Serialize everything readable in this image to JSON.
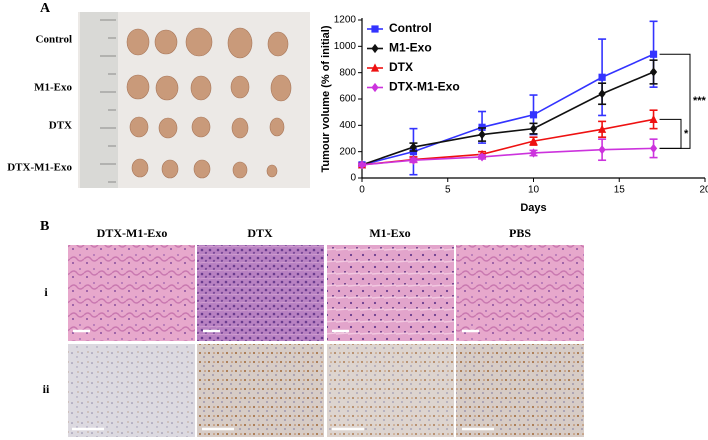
{
  "chart_data": {
    "type": "line",
    "x": [
      0,
      3,
      7,
      10,
      14,
      17
    ],
    "series": [
      {
        "name": "Control",
        "color": "#3333ff",
        "marker": "square",
        "values": [
          100,
          200,
          385,
          480,
          765,
          940
        ],
        "errors": [
          10,
          175,
          120,
          150,
          290,
          250
        ]
      },
      {
        "name": "M1-Exo",
        "color": "#111111",
        "marker": "diamond",
        "values": [
          100,
          235,
          330,
          375,
          640,
          805
        ],
        "errors": [
          10,
          30,
          50,
          40,
          80,
          90
        ]
      },
      {
        "name": "DTX",
        "color": "#ee1111",
        "marker": "triangle",
        "values": [
          100,
          140,
          180,
          280,
          370,
          445
        ],
        "errors": [
          10,
          20,
          20,
          30,
          60,
          70
        ]
      },
      {
        "name": "DTX-M1-Exo",
        "color": "#cc33dd",
        "marker": "diamond",
        "values": [
          100,
          135,
          160,
          190,
          215,
          225
        ],
        "errors": [
          10,
          15,
          15,
          20,
          80,
          70
        ]
      }
    ],
    "xlabel": "Days",
    "ylabel": "Tumour volume (% of initial)",
    "xlim": [
      0,
      20
    ],
    "xticks": [
      0,
      5,
      10,
      15,
      20
    ],
    "ylim": [
      0,
      1200
    ],
    "yticks": [
      0,
      200,
      400,
      600,
      800,
      1000,
      1200
    ],
    "legend": "upper left",
    "annotations": [
      "***",
      "*"
    ]
  },
  "figure": {
    "panel_a": "A",
    "panel_b": "B",
    "photo_rows": [
      "Control",
      "M1-Exo",
      "DTX",
      "DTX-M1-Exo"
    ],
    "columns": [
      "DTX-M1-Exo",
      "DTX",
      "M1-Exo",
      "PBS"
    ],
    "rows": [
      "i",
      "ii"
    ]
  }
}
